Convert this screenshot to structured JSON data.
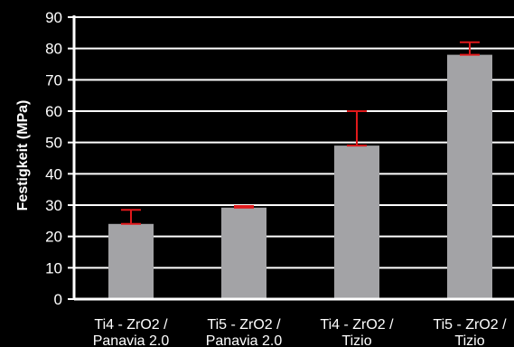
{
  "chart_data": {
    "type": "bar",
    "title": "",
    "ylabel": "Festigkeit (MPa)",
    "xlabel": "",
    "ylim": [
      0,
      90
    ],
    "yticks": [
      0,
      10,
      20,
      30,
      40,
      50,
      60,
      70,
      80,
      90
    ],
    "grid": true,
    "categories": [
      [
        "Ti4 - ZrO2 /",
        "Panavia 2.0"
      ],
      [
        "Ti5 - ZrO2 /",
        "Panavia 2.0"
      ],
      [
        "Ti4 - ZrO2 /",
        "Tizio"
      ],
      [
        "Ti5 - ZrO2 /",
        "Tizio"
      ]
    ],
    "values": [
      24,
      29.2,
      49,
      78
    ],
    "error_upper": [
      4.5,
      0.5,
      11,
      4
    ],
    "error_lower": [
      0,
      0,
      0,
      0
    ],
    "colors": {
      "background": "#000000",
      "bar": "#a3a3a6",
      "error": "#e0191b",
      "grid": "#ffffff",
      "text": "#ffffff"
    }
  }
}
